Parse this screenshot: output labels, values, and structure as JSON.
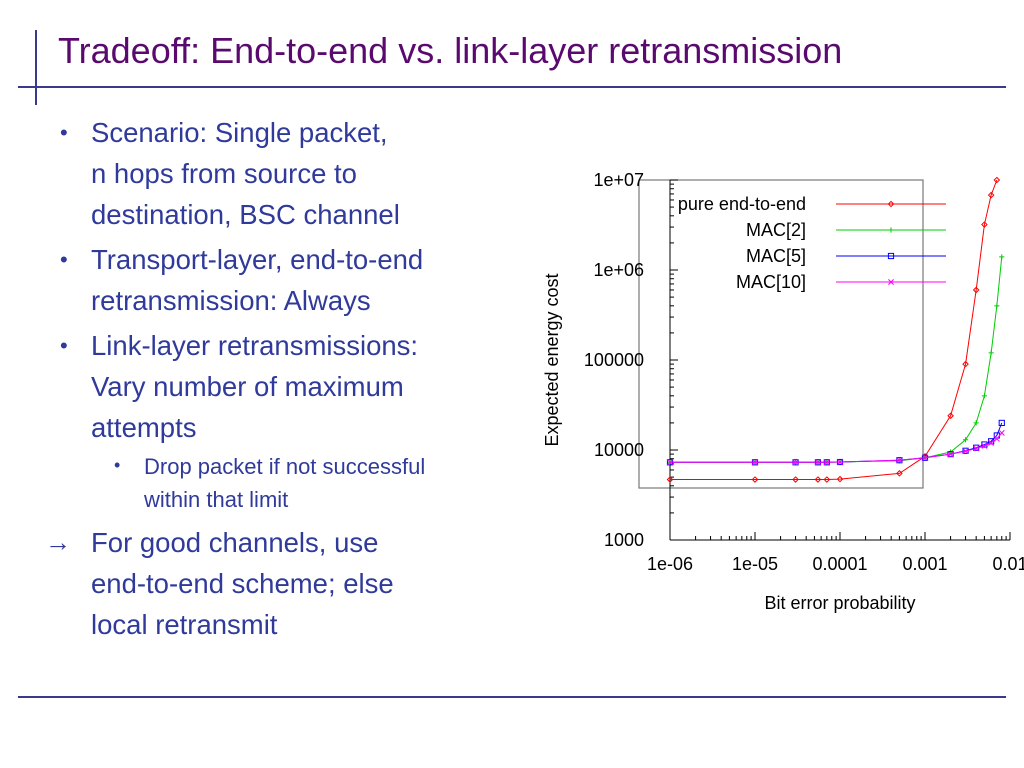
{
  "slide": {
    "title": "Tradeoff: End-to-end vs. link-layer retransmission",
    "bullets": [
      {
        "text_lines": [
          "Scenario: Single packet,",
          "n hops from source to",
          "destination, BSC channel"
        ]
      },
      {
        "text_lines": [
          "Transport-layer, end-to-end",
          "retransmission: Always"
        ]
      },
      {
        "text_lines": [
          "Link-layer retransmissions:",
          "Vary number of maximum",
          "attempts"
        ],
        "sub": [
          {
            "text_lines": [
              "Drop packet if not successful",
              "within that limit"
            ]
          }
        ]
      }
    ],
    "conclusion": {
      "arrow": "→",
      "text_lines": [
        "For good channels, use",
        "end-to-end scheme; else",
        "local retransmit"
      ]
    },
    "colors": {
      "title": "#5a0a6e",
      "body": "#2f3a9a",
      "rules": "#3a3a8c"
    }
  },
  "chart_data": {
    "type": "line",
    "xlabel": "Bit error probability",
    "ylabel": "Expected energy cost",
    "x_scale": "log",
    "y_scale": "log",
    "xlim": [
      1e-06,
      0.01
    ],
    "ylim": [
      1000,
      10000000
    ],
    "x_ticks": [
      1e-06,
      1e-05,
      0.0001,
      0.001,
      0.01
    ],
    "x_tick_labels": [
      "1e-06",
      "1e-05",
      "0.0001",
      "0.001",
      "0.01"
    ],
    "y_ticks": [
      1000,
      10000,
      100000,
      1000000,
      10000000
    ],
    "y_tick_labels": [
      "1000",
      "10000",
      "100000",
      "1e+06",
      "1e+07"
    ],
    "legend_position": "top-right",
    "series": [
      {
        "name": "pure end-to-end",
        "color": "#ff0000",
        "marker": "diamond",
        "x": [
          1e-06,
          1e-05,
          3e-05,
          5.5e-05,
          7e-05,
          0.0001,
          0.0005,
          0.001,
          0.002,
          0.003,
          0.004,
          0.005,
          0.006,
          0.007
        ],
        "y": [
          4700,
          4700,
          4700,
          4700,
          4700,
          4750,
          5500,
          8500,
          24000,
          90000,
          600000,
          3200000,
          6800000,
          10000000
        ]
      },
      {
        "name": "MAC[2]",
        "color": "#00cc00",
        "marker": "plus",
        "x": [
          1e-06,
          1e-05,
          3e-05,
          5.5e-05,
          7e-05,
          0.0001,
          0.0005,
          0.001,
          0.002,
          0.003,
          0.004,
          0.005,
          0.006,
          0.007,
          0.008
        ],
        "y": [
          7300,
          7300,
          7300,
          7300,
          7300,
          7350,
          7600,
          8200,
          9500,
          13000,
          20000,
          40000,
          120000,
          400000,
          1400000
        ]
      },
      {
        "name": "MAC[5]",
        "color": "#0000ff",
        "marker": "square",
        "x": [
          1e-06,
          1e-05,
          3e-05,
          5.5e-05,
          7e-05,
          0.0001,
          0.0005,
          0.001,
          0.002,
          0.003,
          0.004,
          0.005,
          0.006,
          0.007,
          0.008
        ],
        "y": [
          7300,
          7300,
          7300,
          7300,
          7300,
          7350,
          7700,
          8200,
          9000,
          9800,
          10600,
          11500,
          12500,
          14500,
          20000
        ]
      },
      {
        "name": "MAC[10]",
        "color": "#ff00ff",
        "marker": "x",
        "x": [
          1e-06,
          1e-05,
          3e-05,
          5.5e-05,
          7e-05,
          0.0001,
          0.0005,
          0.001,
          0.002,
          0.003,
          0.004,
          0.005,
          0.006,
          0.007,
          0.008
        ],
        "y": [
          7300,
          7300,
          7300,
          7300,
          7300,
          7350,
          7700,
          8200,
          9000,
          9700,
          10400,
          11100,
          12000,
          13300,
          15500
        ]
      }
    ]
  }
}
